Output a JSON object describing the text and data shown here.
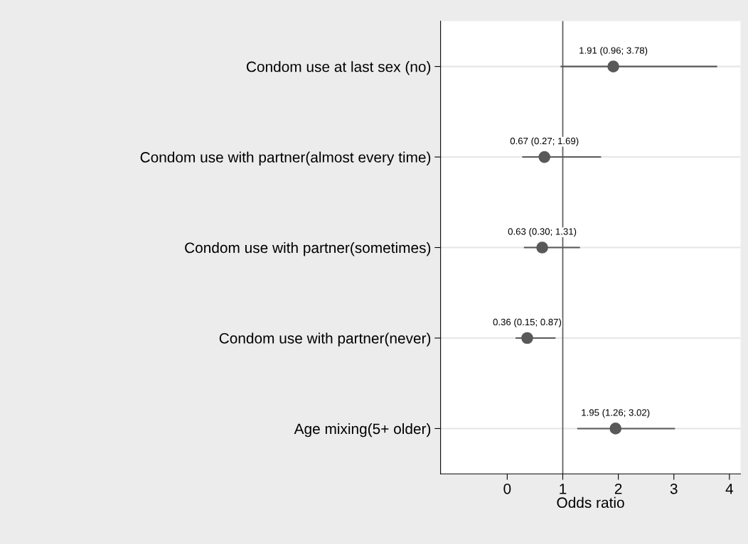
{
  "chart_data": {
    "type": "scatter",
    "orientation": "horizontal",
    "xlabel": "Odds ratio",
    "categories": [
      "Condom use at last sex (no)",
      "Condom use with partner(almost every time)",
      "Condom use with partner(sometimes)",
      "Condom use with partner(never)",
      "Age mixing(5+ older)"
    ],
    "series": [
      {
        "color": "#595959",
        "values": [
          1.91,
          0.67,
          0.63,
          0.36,
          1.95
        ],
        "errors": [
          [
            0.96,
            3.78
          ],
          [
            0.27,
            1.69
          ],
          [
            0.3,
            1.31
          ],
          [
            0.15,
            0.87
          ],
          [
            1.26,
            3.02
          ]
        ],
        "value_labels": [
          "1.91 (0.96; 3.78)",
          "0.67 (0.27; 1.69)",
          "0.63 (0.30; 1.31)",
          "0.36 (0.15; 0.87)",
          "1.95 (1.26; 3.02)"
        ]
      }
    ],
    "xlim": [
      -1.2,
      4.2
    ],
    "xticks": [
      0,
      1,
      2,
      3,
      4
    ],
    "ref_lines": [
      {
        "axis": "x",
        "value": 1,
        "color": "#595959"
      }
    ],
    "grid": "y",
    "marker": "circle",
    "legend": false
  }
}
